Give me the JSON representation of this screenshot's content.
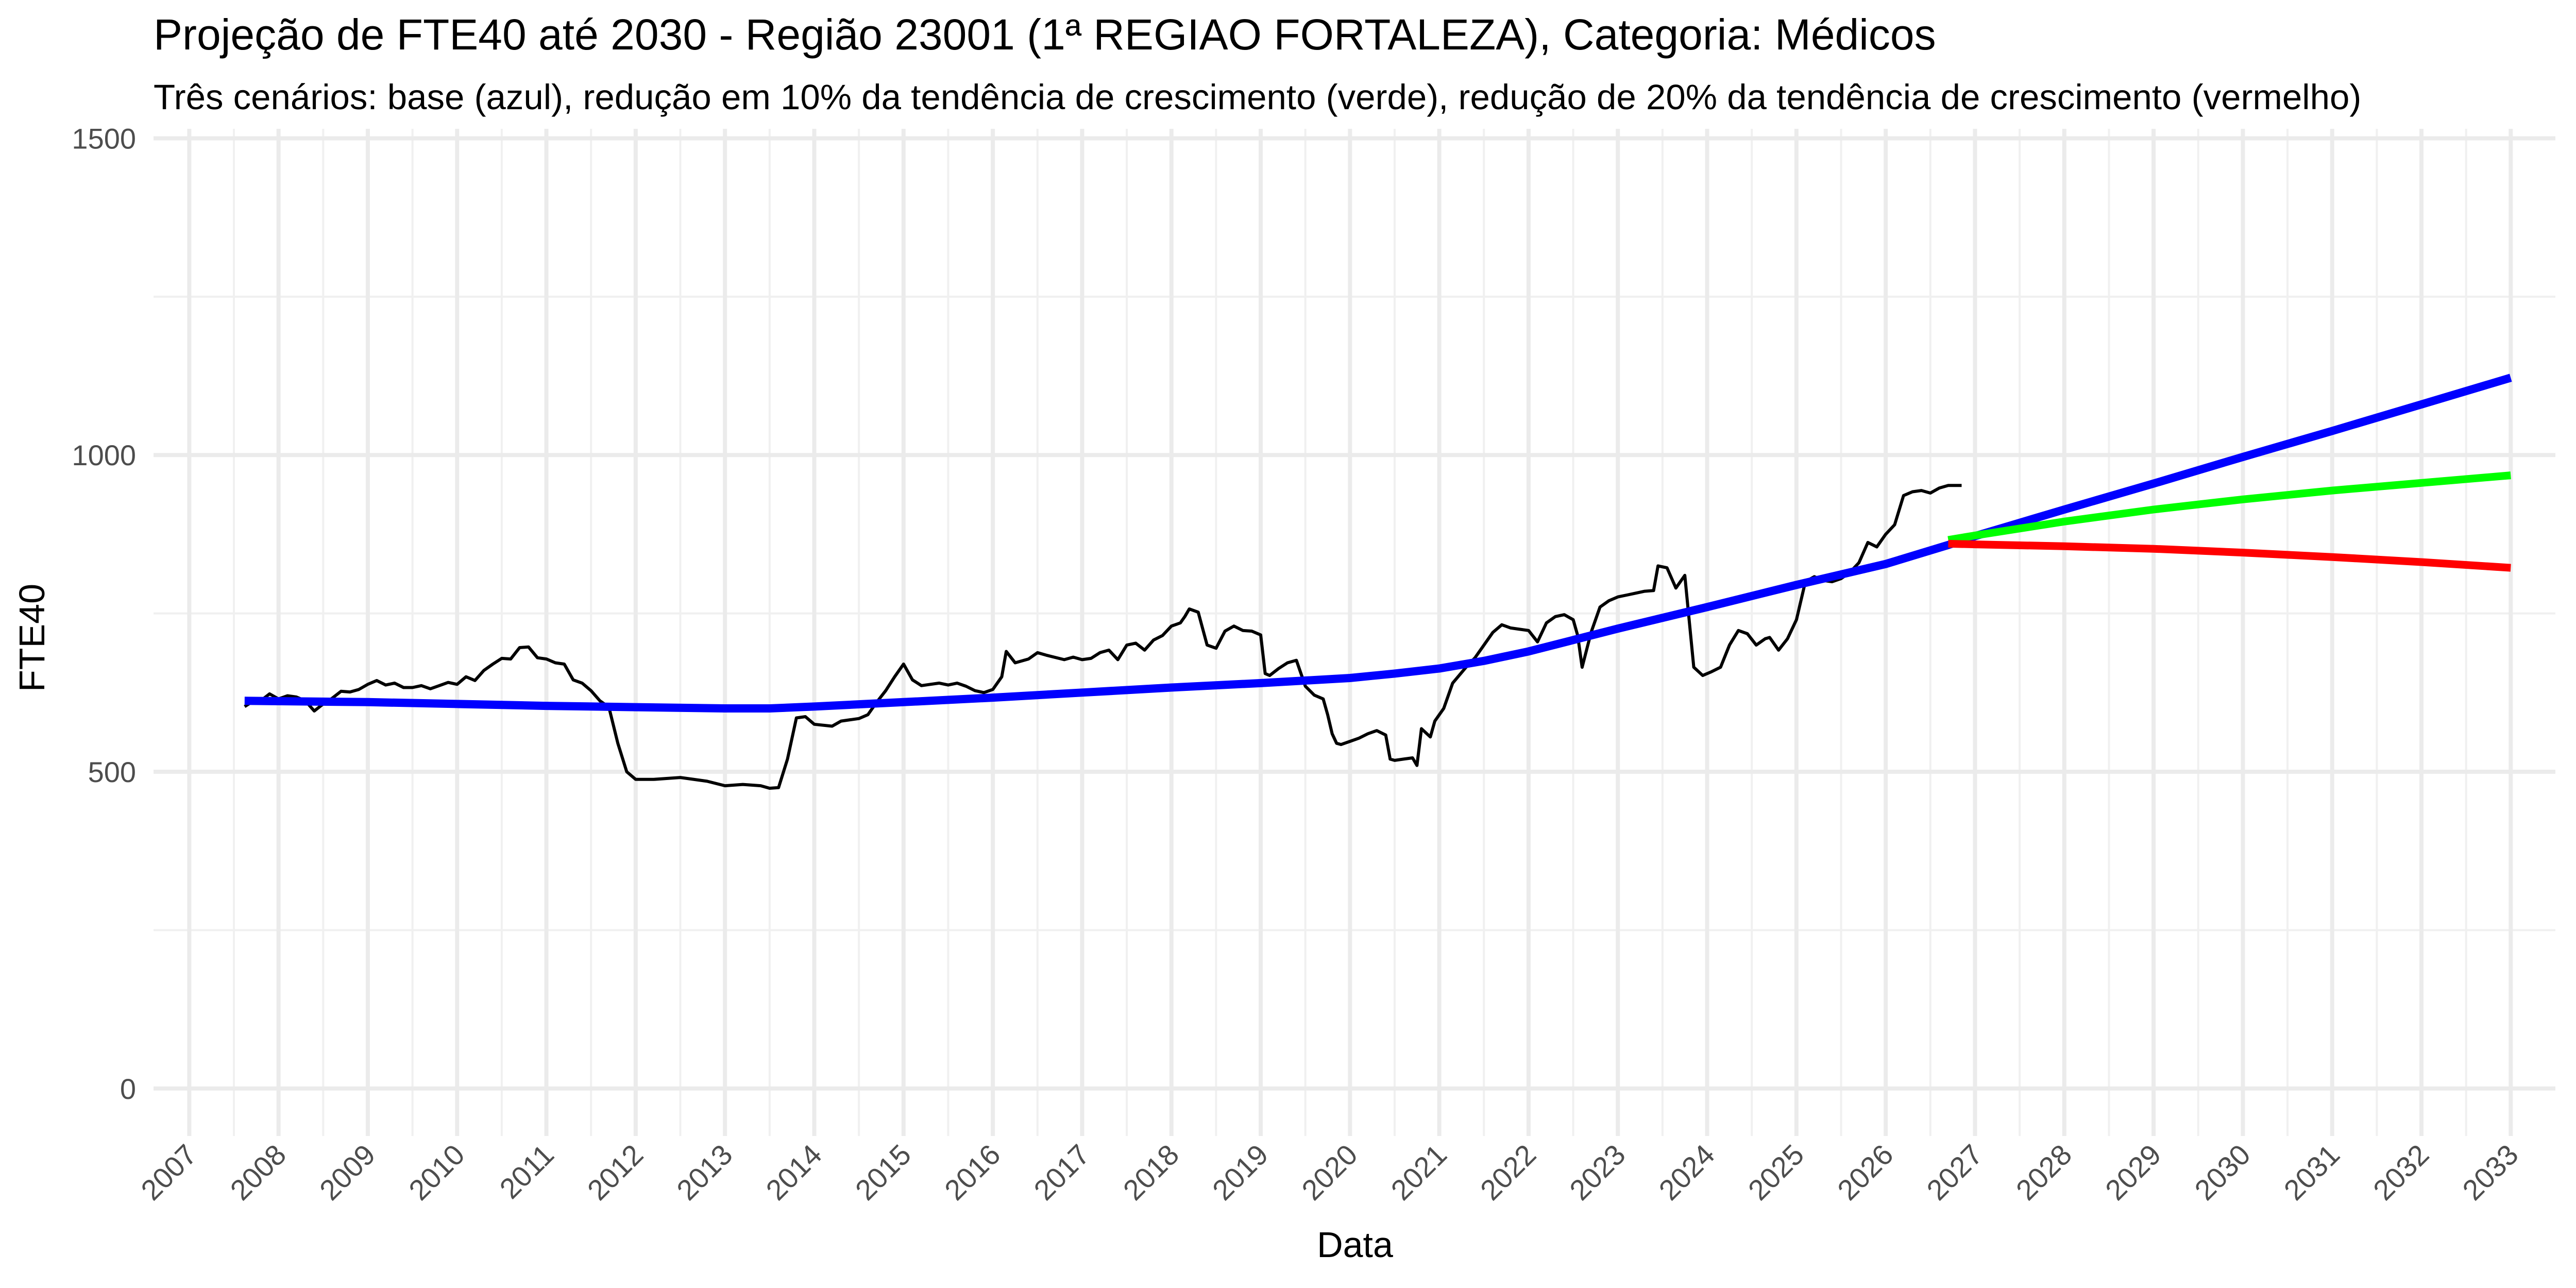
{
  "chart_data": {
    "type": "line",
    "title": "Projeção de FTE40 até 2030 - Região 23001 (1ª REGIAO FORTALEZA), Categoria: Médicos",
    "subtitle": "Três cenários: base (azul), redução em 10% da tendência de crescimento (verde), redução de 20% da tendência de crescimento (vermelho)",
    "xlabel": "Data",
    "ylabel": "FTE40",
    "xlim": [
      2006.6,
      2033.5
    ],
    "ylim": [
      -75,
      1515
    ],
    "x_ticks": [
      "2007",
      "2008",
      "2009",
      "2010",
      "2011",
      "2012",
      "2013",
      "2014",
      "2015",
      "2016",
      "2017",
      "2018",
      "2019",
      "2020",
      "2021",
      "2022",
      "2023",
      "2024",
      "2025",
      "2026",
      "2027",
      "2028",
      "2029",
      "2030",
      "2031",
      "2032",
      "2033"
    ],
    "y_ticks": [
      0,
      500,
      1000,
      1500
    ],
    "y_tick_labels": [
      "0",
      "500",
      "1000",
      "1500"
    ],
    "grid": true,
    "series": [
      {
        "role": "observed",
        "color": "#000000",
        "points": [
          [
            2007.62,
            603
          ],
          [
            2007.7,
            610
          ],
          [
            2007.8,
            612
          ],
          [
            2007.9,
            623
          ],
          [
            2008.0,
            615
          ],
          [
            2008.1,
            620
          ],
          [
            2008.2,
            618
          ],
          [
            2008.3,
            612
          ],
          [
            2008.4,
            596
          ],
          [
            2008.5,
            607
          ],
          [
            2008.6,
            616
          ],
          [
            2008.7,
            627
          ],
          [
            2008.8,
            626
          ],
          [
            2008.9,
            630
          ],
          [
            2009.0,
            638
          ],
          [
            2009.1,
            644
          ],
          [
            2009.2,
            637
          ],
          [
            2009.3,
            640
          ],
          [
            2009.4,
            633
          ],
          [
            2009.5,
            633
          ],
          [
            2009.6,
            636
          ],
          [
            2009.7,
            631
          ],
          [
            2009.8,
            636
          ],
          [
            2009.9,
            641
          ],
          [
            2010.0,
            638
          ],
          [
            2010.1,
            650
          ],
          [
            2010.2,
            644
          ],
          [
            2010.3,
            660
          ],
          [
            2010.4,
            670
          ],
          [
            2010.5,
            679
          ],
          [
            2010.6,
            678
          ],
          [
            2010.7,
            696
          ],
          [
            2010.8,
            697
          ],
          [
            2010.9,
            680
          ],
          [
            2011.0,
            678
          ],
          [
            2011.1,
            672
          ],
          [
            2011.2,
            670
          ],
          [
            2011.3,
            645
          ],
          [
            2011.4,
            640
          ],
          [
            2011.5,
            628
          ],
          [
            2011.6,
            612
          ],
          [
            2011.7,
            602
          ],
          [
            2011.8,
            545
          ],
          [
            2011.9,
            500
          ],
          [
            2012.0,
            488
          ],
          [
            2012.2,
            488
          ],
          [
            2012.5,
            491
          ],
          [
            2012.8,
            485
          ],
          [
            2013.0,
            478
          ],
          [
            2013.2,
            480
          ],
          [
            2013.4,
            478
          ],
          [
            2013.5,
            474
          ],
          [
            2013.6,
            475
          ],
          [
            2013.7,
            520
          ],
          [
            2013.8,
            585
          ],
          [
            2013.9,
            587
          ],
          [
            2014.0,
            575
          ],
          [
            2014.2,
            572
          ],
          [
            2014.3,
            580
          ],
          [
            2014.5,
            584
          ],
          [
            2014.6,
            590
          ],
          [
            2014.7,
            610
          ],
          [
            2014.8,
            628
          ],
          [
            2014.9,
            650
          ],
          [
            2015.0,
            670
          ],
          [
            2015.1,
            645
          ],
          [
            2015.2,
            636
          ],
          [
            2015.3,
            638
          ],
          [
            2015.4,
            640
          ],
          [
            2015.5,
            637
          ],
          [
            2015.6,
            640
          ],
          [
            2015.7,
            635
          ],
          [
            2015.8,
            628
          ],
          [
            2015.9,
            625
          ],
          [
            2016.0,
            630
          ],
          [
            2016.1,
            650
          ],
          [
            2016.15,
            690
          ],
          [
            2016.25,
            672
          ],
          [
            2016.4,
            678
          ],
          [
            2016.5,
            688
          ],
          [
            2016.6,
            684
          ],
          [
            2016.8,
            677
          ],
          [
            2016.9,
            681
          ],
          [
            2017.0,
            677
          ],
          [
            2017.1,
            679
          ],
          [
            2017.2,
            688
          ],
          [
            2017.3,
            692
          ],
          [
            2017.4,
            677
          ],
          [
            2017.5,
            700
          ],
          [
            2017.6,
            703
          ],
          [
            2017.7,
            692
          ],
          [
            2017.8,
            708
          ],
          [
            2017.9,
            715
          ],
          [
            2018.0,
            730
          ],
          [
            2018.1,
            735
          ],
          [
            2018.15,
            745
          ],
          [
            2018.2,
            757
          ],
          [
            2018.3,
            752
          ],
          [
            2018.4,
            700
          ],
          [
            2018.5,
            695
          ],
          [
            2018.6,
            722
          ],
          [
            2018.7,
            730
          ],
          [
            2018.8,
            723
          ],
          [
            2018.9,
            722
          ],
          [
            2019.0,
            716
          ],
          [
            2019.05,
            655
          ],
          [
            2019.1,
            652
          ],
          [
            2019.2,
            663
          ],
          [
            2019.3,
            672
          ],
          [
            2019.4,
            676
          ],
          [
            2019.5,
            635
          ],
          [
            2019.6,
            621
          ],
          [
            2019.7,
            615
          ],
          [
            2019.75,
            590
          ],
          [
            2019.8,
            560
          ],
          [
            2019.85,
            545
          ],
          [
            2019.9,
            543
          ],
          [
            2020.0,
            548
          ],
          [
            2020.1,
            553
          ],
          [
            2020.2,
            560
          ],
          [
            2020.3,
            565
          ],
          [
            2020.4,
            558
          ],
          [
            2020.45,
            520
          ],
          [
            2020.5,
            518
          ],
          [
            2020.6,
            520
          ],
          [
            2020.7,
            522
          ],
          [
            2020.75,
            510
          ],
          [
            2020.8,
            568
          ],
          [
            2020.9,
            555
          ],
          [
            2020.95,
            580
          ],
          [
            2021.05,
            600
          ],
          [
            2021.15,
            640
          ],
          [
            2021.3,
            665
          ],
          [
            2021.4,
            680
          ],
          [
            2021.5,
            700
          ],
          [
            2021.6,
            720
          ],
          [
            2021.7,
            732
          ],
          [
            2021.8,
            727
          ],
          [
            2021.9,
            725
          ],
          [
            2022.0,
            723
          ],
          [
            2022.1,
            705
          ],
          [
            2022.2,
            735
          ],
          [
            2022.3,
            745
          ],
          [
            2022.4,
            748
          ],
          [
            2022.5,
            740
          ],
          [
            2022.55,
            715
          ],
          [
            2022.6,
            665
          ],
          [
            2022.7,
            720
          ],
          [
            2022.8,
            760
          ],
          [
            2022.9,
            770
          ],
          [
            2023.0,
            776
          ],
          [
            2023.1,
            779
          ],
          [
            2023.2,
            782
          ],
          [
            2023.3,
            785
          ],
          [
            2023.4,
            786
          ],
          [
            2023.45,
            825
          ],
          [
            2023.55,
            822
          ],
          [
            2023.65,
            790
          ],
          [
            2023.75,
            810
          ],
          [
            2023.85,
            665
          ],
          [
            2023.95,
            652
          ],
          [
            2024.05,
            658
          ],
          [
            2024.15,
            665
          ],
          [
            2024.25,
            700
          ],
          [
            2024.35,
            723
          ],
          [
            2024.45,
            718
          ],
          [
            2024.55,
            700
          ],
          [
            2024.65,
            710
          ],
          [
            2024.7,
            712
          ],
          [
            2024.8,
            692
          ],
          [
            2024.9,
            710
          ],
          [
            2025.0,
            740
          ],
          [
            2025.1,
            800
          ],
          [
            2025.2,
            808
          ],
          [
            2025.3,
            802
          ],
          [
            2025.4,
            800
          ],
          [
            2025.5,
            805
          ],
          [
            2025.6,
            815
          ],
          [
            2025.7,
            830
          ],
          [
            2025.8,
            862
          ],
          [
            2025.9,
            855
          ],
          [
            2026.0,
            875
          ],
          [
            2026.1,
            890
          ],
          [
            2026.2,
            936
          ],
          [
            2026.3,
            942
          ],
          [
            2026.4,
            944
          ],
          [
            2026.5,
            940
          ],
          [
            2026.6,
            948
          ],
          [
            2026.7,
            952
          ],
          [
            2026.85,
            952
          ]
        ]
      },
      {
        "role": "base",
        "color": "#0000ff",
        "points": [
          [
            2007.62,
            612
          ],
          [
            2009.0,
            610
          ],
          [
            2010.0,
            607
          ],
          [
            2011.0,
            604
          ],
          [
            2012.0,
            602
          ],
          [
            2013.0,
            600
          ],
          [
            2013.5,
            600
          ],
          [
            2014.0,
            603
          ],
          [
            2015.0,
            610
          ],
          [
            2016.0,
            617
          ],
          [
            2017.0,
            625
          ],
          [
            2018.0,
            633
          ],
          [
            2019.0,
            640
          ],
          [
            2020.0,
            648
          ],
          [
            2020.5,
            655
          ],
          [
            2021.0,
            663
          ],
          [
            2021.5,
            675
          ],
          [
            2022.0,
            690
          ],
          [
            2022.5,
            708
          ],
          [
            2023.0,
            726
          ],
          [
            2024.0,
            760
          ],
          [
            2025.0,
            795
          ],
          [
            2026.0,
            828
          ],
          [
            2026.7,
            858
          ],
          [
            2027.0,
            872
          ],
          [
            2028.0,
            914
          ],
          [
            2029.0,
            955
          ],
          [
            2030.0,
            997
          ],
          [
            2031.0,
            1038
          ],
          [
            2032.0,
            1080
          ],
          [
            2033.0,
            1122
          ]
        ]
      },
      {
        "role": "scenario -10%",
        "color": "#00ff00",
        "points": [
          [
            2026.7,
            866
          ],
          [
            2027.0,
            873
          ],
          [
            2028.0,
            895
          ],
          [
            2029.0,
            914
          ],
          [
            2030.0,
            930
          ],
          [
            2031.0,
            944
          ],
          [
            2032.0,
            956
          ],
          [
            2033.0,
            968
          ]
        ]
      },
      {
        "role": "scenario -20%",
        "color": "#ff0000",
        "points": [
          [
            2026.7,
            860
          ],
          [
            2027.0,
            859
          ],
          [
            2028.0,
            856
          ],
          [
            2029.0,
            852
          ],
          [
            2030.0,
            846
          ],
          [
            2031.0,
            839
          ],
          [
            2032.0,
            831
          ],
          [
            2033.0,
            822
          ]
        ]
      }
    ]
  }
}
